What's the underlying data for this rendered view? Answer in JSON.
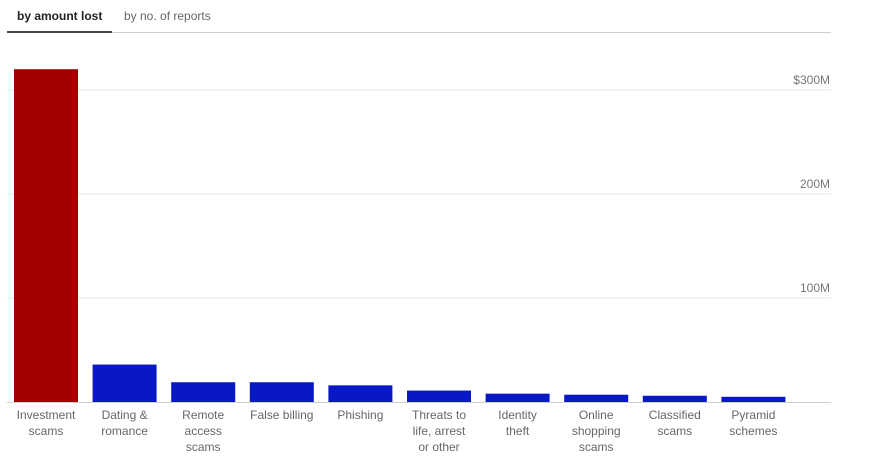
{
  "tabs": [
    {
      "label": "by amount lost",
      "active": true
    },
    {
      "label": "by no. of reports",
      "active": false
    }
  ],
  "colors": {
    "highlight": "#a30000",
    "bar": "#0718c4",
    "grid": "#e6e6e6",
    "axis": "#cfcfcf"
  },
  "chart_data": {
    "type": "bar",
    "categories": [
      [
        "Investment",
        "scams"
      ],
      [
        "Dating &",
        "romance"
      ],
      [
        "Remote",
        "access",
        "scams"
      ],
      [
        "False billing"
      ],
      [
        "Phishing"
      ],
      [
        "Threats to",
        "life, arrest",
        "or other"
      ],
      [
        "Identity",
        "theft"
      ],
      [
        "Online",
        "shopping",
        "scams"
      ],
      [
        "Classified",
        "scams"
      ],
      [
        "Pyramid",
        "schemes"
      ]
    ],
    "values": [
      320,
      36,
      19,
      19,
      16,
      11,
      8,
      7,
      6,
      5
    ],
    "unit": "$M",
    "highlight_index": 0,
    "yticks": [
      {
        "value": 100,
        "label": "100M"
      },
      {
        "value": 200,
        "label": "200M"
      },
      {
        "value": 300,
        "label": "$300M"
      }
    ],
    "ylim": [
      0,
      340
    ],
    "grid": true,
    "axis_position": "right",
    "title": "",
    "xlabel": "",
    "ylabel": ""
  }
}
